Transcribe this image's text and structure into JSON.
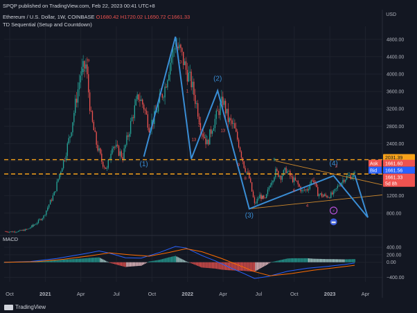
{
  "header": {
    "published": "SPQP published on TradingView.com, Feb 22, 2023 00:41 UTC+8",
    "symbol": "Ethereum / U.S. Dollar, 1W, COINBASE",
    "ohlc": {
      "o": "O1680.42",
      "h": "H1720.02",
      "l": "L1650.72",
      "c": "C1661.33"
    },
    "indicator": "TD Sequential (Setup and Countdown)",
    "currency": "USD"
  },
  "footer": {
    "brand": "TradingView"
  },
  "colors": {
    "bg": "#131722",
    "grid": "#1e222d",
    "up": "#26a69a",
    "down": "#ef5350",
    "wave": "#3a8ed6",
    "orange": "#f7a21a",
    "trend": "#d08a2c",
    "ask": "#ef5350",
    "bid": "#2962ff",
    "macd": "#2962ff",
    "signal": "#ff6d00"
  },
  "chart_data": [
    {
      "type": "candlestick",
      "title": "Ethereum / U.S. Dollar, 1W, COINBASE",
      "ylim": [
        350,
        5100
      ],
      "y_ticks": [
        800,
        1200,
        1600,
        2000,
        2400,
        2800,
        3200,
        3600,
        4000,
        4400,
        4800
      ],
      "x_ticks": [
        "Oct",
        "2021",
        "Apr",
        "Jul",
        "Oct",
        "2022",
        "Apr",
        "Jul",
        "Oct",
        "2023",
        "Apr"
      ],
      "price_labels": {
        "ask_label": "Ask",
        "ask": "1661.60",
        "bid_label": "Bid",
        "bid": "1661.56",
        "upper_level": "2031.39",
        "lower_level": "1701.00",
        "last": "1661.33",
        "countdown": "5d 8h"
      },
      "levels": [
        2031,
        1701
      ],
      "path_points": [
        [
          0,
          380
        ],
        [
          6,
          370
        ],
        [
          12,
          390
        ],
        [
          18,
          430
        ],
        [
          24,
          560
        ],
        [
          30,
          730
        ],
        [
          34,
          1000
        ],
        [
          38,
          1250
        ],
        [
          42,
          1700
        ],
        [
          46,
          2100
        ],
        [
          50,
          2600
        ],
        [
          54,
          3300
        ],
        [
          58,
          4000
        ],
        [
          62,
          4200
        ],
        [
          66,
          3000
        ],
        [
          70,
          2400
        ],
        [
          74,
          2000
        ],
        [
          78,
          1800
        ],
        [
          82,
          2400
        ],
        [
          86,
          2250
        ],
        [
          90,
          2100
        ],
        [
          94,
          2600
        ],
        [
          98,
          3100
        ],
        [
          102,
          3500
        ],
        [
          106,
          3250
        ],
        [
          110,
          2800
        ],
        [
          114,
          3000
        ],
        [
          118,
          3400
        ],
        [
          122,
          3700
        ],
        [
          126,
          4300
        ],
        [
          130,
          4700
        ],
        [
          134,
          4500
        ],
        [
          138,
          4100
        ],
        [
          142,
          3800
        ],
        [
          146,
          3300
        ],
        [
          150,
          2700
        ],
        [
          154,
          2400
        ],
        [
          158,
          2800
        ],
        [
          162,
          3100
        ],
        [
          166,
          3400
        ],
        [
          170,
          2950
        ],
        [
          174,
          2800
        ],
        [
          178,
          2400
        ],
        [
          182,
          1900
        ],
        [
          186,
          1600
        ],
        [
          190,
          1000
        ],
        [
          194,
          1200
        ],
        [
          198,
          1100
        ],
        [
          202,
          1500
        ],
        [
          206,
          1750
        ],
        [
          210,
          1650
        ],
        [
          214,
          1800
        ],
        [
          218,
          1600
        ],
        [
          222,
          1500
        ],
        [
          226,
          1300
        ],
        [
          230,
          1350
        ],
        [
          234,
          1600
        ],
        [
          238,
          1250
        ],
        [
          242,
          1200
        ],
        [
          246,
          1190
        ],
        [
          250,
          1250
        ],
        [
          254,
          1450
        ],
        [
          258,
          1600
        ],
        [
          262,
          1650
        ],
        [
          266,
          1680
        ]
      ],
      "wave_labels": [
        "(1)",
        "(2)",
        "(3)",
        "(4)"
      ],
      "wave_path": [
        [
          106,
          2100
        ],
        [
          130,
          4860
        ],
        [
          142,
          2050
        ],
        [
          162,
          3620
        ],
        [
          186,
          900
        ],
        [
          250,
          1660
        ],
        [
          276,
          700
        ]
      ],
      "td_labels": [
        {
          "t": "9",
          "i": 22,
          "p": 480,
          "c": "up"
        },
        {
          "t": "9",
          "i": 60,
          "p": 4050,
          "c": "up"
        },
        {
          "t": "9",
          "i": 64,
          "p": 4280,
          "c": "down"
        },
        {
          "t": "3",
          "i": 134,
          "p": 4250,
          "c": "down"
        },
        {
          "t": "1",
          "i": 139,
          "p": 3580,
          "c": "down"
        },
        {
          "t": "13",
          "i": 144,
          "p": 2460,
          "c": "down"
        },
        {
          "t": "2",
          "i": 148,
          "p": 2800,
          "c": "down"
        },
        {
          "t": "9",
          "i": 153,
          "p": 2530,
          "c": "up"
        },
        {
          "t": "13",
          "i": 166,
          "p": 2670,
          "c": "down"
        },
        {
          "t": "9",
          "i": 178,
          "p": 1880,
          "c": "down"
        },
        {
          "t": "8",
          "i": 183,
          "p": 1570,
          "c": "down"
        },
        {
          "t": "8",
          "i": 196,
          "p": 1120,
          "c": "down"
        },
        {
          "t": "9",
          "i": 205,
          "p": 2000,
          "c": "up"
        },
        {
          "t": "6",
          "i": 220,
          "p": 1290,
          "c": "down"
        },
        {
          "t": "4",
          "i": 230,
          "p": 940,
          "c": "down"
        },
        {
          "t": "3",
          "i": 236,
          "p": 1480,
          "c": "down"
        },
        {
          "t": "3",
          "i": 242,
          "p": 1160,
          "c": "down"
        },
        {
          "t": "3",
          "i": 252,
          "p": 1850,
          "c": "down"
        }
      ]
    },
    {
      "type": "macd",
      "title": "MACD",
      "ylim": [
        -520,
        620
      ],
      "y_ticks": [
        -400,
        0,
        200,
        400
      ],
      "y_tick_labels": [
        "−400.00",
        "0.00",
        "200.00",
        "400.00"
      ],
      "macd": [
        [
          0,
          0
        ],
        [
          20,
          20
        ],
        [
          40,
          100
        ],
        [
          60,
          220
        ],
        [
          72,
          300
        ],
        [
          80,
          240
        ],
        [
          92,
          120
        ],
        [
          104,
          110
        ],
        [
          118,
          260
        ],
        [
          130,
          420
        ],
        [
          138,
          380
        ],
        [
          150,
          180
        ],
        [
          160,
          40
        ],
        [
          170,
          -120
        ],
        [
          182,
          -300
        ],
        [
          190,
          -430
        ],
        [
          200,
          -380
        ],
        [
          215,
          -240
        ],
        [
          230,
          -160
        ],
        [
          245,
          -110
        ],
        [
          258,
          -60
        ],
        [
          266,
          -20
        ]
      ],
      "signal": [
        [
          0,
          0
        ],
        [
          25,
          15
        ],
        [
          45,
          80
        ],
        [
          65,
          170
        ],
        [
          80,
          250
        ],
        [
          95,
          200
        ],
        [
          110,
          160
        ],
        [
          125,
          260
        ],
        [
          138,
          360
        ],
        [
          150,
          280
        ],
        [
          165,
          100
        ],
        [
          178,
          -80
        ],
        [
          190,
          -250
        ],
        [
          202,
          -360
        ],
        [
          218,
          -300
        ],
        [
          235,
          -210
        ],
        [
          250,
          -150
        ],
        [
          266,
          -80
        ]
      ]
    }
  ]
}
